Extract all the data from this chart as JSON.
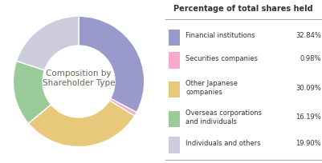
{
  "title": "Percentage of total shares held",
  "donut_label": "Composition by\nShareholder Type",
  "categories": [
    "Financial institutions",
    "Securities companies",
    "Other Japanese\ncompanies",
    "Overseas corporations\nand individuals",
    "Individuals and others"
  ],
  "values": [
    32.84,
    0.98,
    30.09,
    16.19,
    19.9
  ],
  "percentages": [
    "32.84%",
    "0.98%",
    "30.09%",
    "16.19%",
    "19.90%"
  ],
  "colors": [
    "#9999cc",
    "#f9aacc",
    "#e8c87a",
    "#99cc99",
    "#ccccdd"
  ],
  "background_color": "#ffffff",
  "start_angle": 90
}
